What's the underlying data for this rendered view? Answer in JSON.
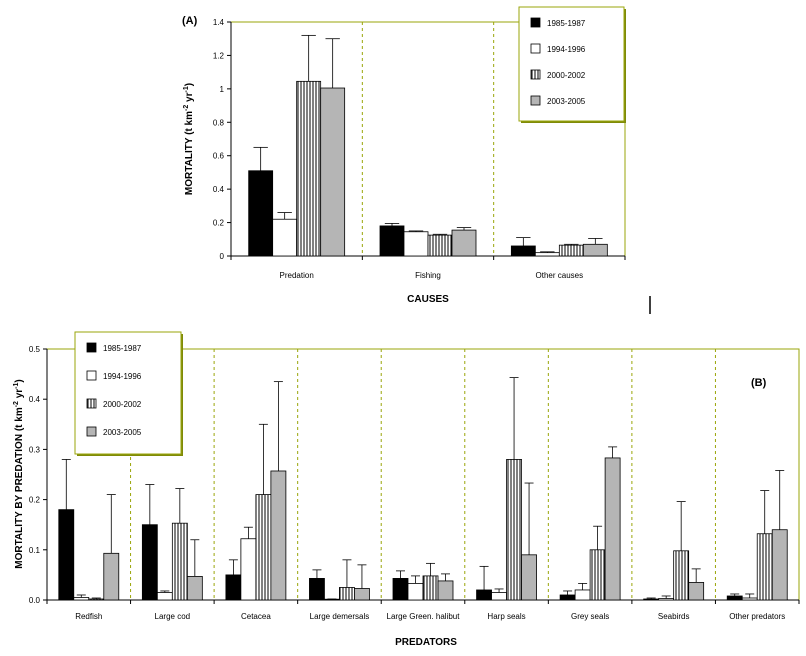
{
  "chart_data": [
    {
      "type": "bar",
      "panel_label": "(A)",
      "xlabel": "CAUSES",
      "ylabel": "MORTALITY (t km^-2 yr^-1)",
      "ylabel_parts": {
        "base": "MORTALITY (t km",
        "sup1": "-2",
        "mid": " yr",
        "sup2": "-1",
        "end": ")"
      },
      "ylim": [
        0,
        1.4
      ],
      "yticks": [
        "0",
        "0.2",
        "0.4",
        "0.6",
        "0.8",
        "1",
        "1.2",
        "1.4"
      ],
      "ytick_values": [
        0,
        0.2,
        0.4,
        0.6,
        0.8,
        1.0,
        1.2,
        1.4
      ],
      "categories": [
        "Predation",
        "Fishing",
        "Other causes"
      ],
      "legend_placement": "top-right",
      "series": [
        {
          "name": "1985-1987",
          "values": [
            0.51,
            0.18,
            0.06
          ],
          "errors": [
            0.65,
            0.195,
            0.11
          ]
        },
        {
          "name": "1994-1996",
          "values": [
            0.22,
            0.145,
            0.02
          ],
          "errors": [
            0.26,
            0.15,
            0.025
          ]
        },
        {
          "name": "2000-2002",
          "values": [
            1.045,
            0.125,
            0.065
          ],
          "errors": [
            1.32,
            0.13,
            0.07
          ]
        },
        {
          "name": "2003-2005",
          "values": [
            1.005,
            0.155,
            0.07
          ],
          "errors": [
            1.3,
            0.17,
            0.105
          ]
        }
      ]
    },
    {
      "type": "bar",
      "panel_label": "(B)",
      "xlabel": "PREDATORS",
      "ylabel": "MORTALITY BY PREDATION (t km^-2 yr^-1)",
      "ylabel_parts": {
        "base": "MORTALITY BY PREDATION (t km",
        "sup1": "-2",
        "mid": " yr",
        "sup2": "-1",
        "end": ")"
      },
      "ylim": [
        0,
        0.5
      ],
      "yticks": [
        "0.0",
        "0.1",
        "0.2",
        "0.3",
        "0.4",
        "0.5"
      ],
      "ytick_values": [
        0,
        0.1,
        0.2,
        0.3,
        0.4,
        0.5
      ],
      "categories": [
        "Redfish",
        "Large cod",
        "Cetacea",
        "Large demersals",
        "Large Green. halibut",
        "Harp seals",
        "Grey seals",
        "Seabirds",
        "Other predators"
      ],
      "legend_placement": "top-left",
      "series": [
        {
          "name": "1985-1987",
          "values": [
            0.18,
            0.15,
            0.05,
            0.043,
            0.043,
            0.02,
            0.01,
            0.002,
            0.008
          ],
          "errors": [
            0.28,
            0.23,
            0.08,
            0.06,
            0.058,
            0.067,
            0.018,
            0.004,
            0.012
          ]
        },
        {
          "name": "1994-1996",
          "values": [
            0.005,
            0.015,
            0.122,
            0.001,
            0.033,
            0.015,
            0.02,
            0.003,
            0.004
          ],
          "errors": [
            0.01,
            0.018,
            0.145,
            0.002,
            0.048,
            0.022,
            0.033,
            0.008,
            0.012
          ]
        },
        {
          "name": "2000-2002",
          "values": [
            0.002,
            0.153,
            0.21,
            0.025,
            0.048,
            0.28,
            0.1,
            0.098,
            0.132
          ],
          "errors": [
            0.004,
            0.222,
            0.35,
            0.08,
            0.073,
            0.443,
            0.147,
            0.196,
            0.218
          ]
        },
        {
          "name": "2003-2005",
          "values": [
            0.093,
            0.047,
            0.257,
            0.023,
            0.038,
            0.09,
            0.283,
            0.035,
            0.14
          ],
          "errors": [
            0.21,
            0.12,
            0.435,
            0.07,
            0.052,
            0.233,
            0.305,
            0.062,
            0.258
          ]
        }
      ]
    }
  ]
}
